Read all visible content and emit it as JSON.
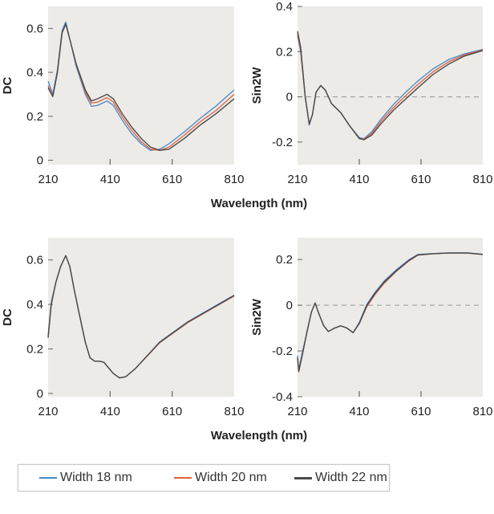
{
  "colors": {
    "plot_background": "#ecebe7",
    "width_18": "#4a86c8",
    "width_20": "#e0603a",
    "width_22": "#4a4a4a",
    "zero_line": "#a0a0a0"
  },
  "legend": [
    {
      "label": "Width 18 nm",
      "color": "#4a86c8"
    },
    {
      "label": "Width 20 nm",
      "color": "#e0603a"
    },
    {
      "label": "Width 22 nm",
      "color": "#4a4a4a"
    }
  ],
  "chart_data": [
    {
      "type": "line",
      "ylabel": "DC",
      "xlabel": "Wavelength (nm)",
      "xlim": [
        210,
        810
      ],
      "ylim": [
        -0.02,
        0.7
      ],
      "xticks": [
        210,
        410,
        610,
        810
      ],
      "yticks": [
        0,
        0.2,
        0.4,
        0.6
      ],
      "ytick_labels": [
        "0",
        "0.2",
        "0.4",
        "0.6"
      ],
      "zero_line": false,
      "x": [
        210,
        225,
        240,
        255,
        267,
        280,
        300,
        330,
        350,
        370,
        400,
        420,
        450,
        480,
        510,
        540,
        570,
        600,
        650,
        700,
        750,
        810
      ],
      "series": [
        {
          "name": "Width 18 nm",
          "values": [
            0.36,
            0.3,
            0.41,
            0.59,
            0.63,
            0.55,
            0.43,
            0.3,
            0.245,
            0.25,
            0.27,
            0.25,
            0.18,
            0.12,
            0.075,
            0.045,
            0.05,
            0.075,
            0.13,
            0.19,
            0.245,
            0.32
          ]
        },
        {
          "name": "Width 20 nm",
          "values": [
            0.34,
            0.29,
            0.4,
            0.58,
            0.62,
            0.55,
            0.44,
            0.31,
            0.26,
            0.265,
            0.285,
            0.265,
            0.195,
            0.135,
            0.085,
            0.05,
            0.045,
            0.06,
            0.115,
            0.175,
            0.225,
            0.3
          ]
        },
        {
          "name": "Width 22 nm",
          "values": [
            0.33,
            0.29,
            0.4,
            0.58,
            0.62,
            0.55,
            0.44,
            0.32,
            0.27,
            0.28,
            0.3,
            0.28,
            0.21,
            0.15,
            0.1,
            0.06,
            0.045,
            0.05,
            0.1,
            0.16,
            0.21,
            0.28
          ]
        }
      ]
    },
    {
      "type": "line",
      "ylabel": "Sin2W",
      "xlim": [
        210,
        810
      ],
      "ylim": [
        -0.3,
        0.4
      ],
      "xticks": [
        210,
        410,
        610,
        810
      ],
      "yticks": [
        -0.2,
        0,
        0.2,
        0.4
      ],
      "ytick_labels": [
        "-0.2",
        "0",
        "0.2",
        "0.4"
      ],
      "zero_line": true,
      "x": [
        210,
        220,
        235,
        248,
        258,
        270,
        285,
        300,
        320,
        350,
        380,
        410,
        425,
        450,
        480,
        520,
        560,
        600,
        650,
        700,
        750,
        810
      ],
      "series": [
        {
          "name": "Width 18 nm",
          "values": [
            0.27,
            0.2,
            0.0,
            -0.125,
            -0.08,
            0.02,
            0.05,
            0.03,
            -0.03,
            -0.07,
            -0.13,
            -0.18,
            -0.185,
            -0.155,
            -0.1,
            -0.035,
            0.02,
            0.07,
            0.125,
            0.165,
            0.19,
            0.21
          ]
        },
        {
          "name": "Width 20 nm",
          "values": [
            0.28,
            0.21,
            0.0,
            -0.12,
            -0.08,
            0.02,
            0.05,
            0.03,
            -0.03,
            -0.07,
            -0.13,
            -0.183,
            -0.188,
            -0.163,
            -0.11,
            -0.048,
            0.005,
            0.055,
            0.112,
            0.155,
            0.185,
            0.207
          ]
        },
        {
          "name": "Width 22 nm",
          "values": [
            0.29,
            0.22,
            0.0,
            -0.12,
            -0.08,
            0.02,
            0.05,
            0.03,
            -0.03,
            -0.07,
            -0.13,
            -0.185,
            -0.19,
            -0.17,
            -0.12,
            -0.06,
            -0.01,
            0.04,
            0.1,
            0.145,
            0.18,
            0.205
          ]
        }
      ]
    },
    {
      "type": "line",
      "ylabel": "DC",
      "xlabel": "Wavelength (nm)",
      "xlim": [
        210,
        810
      ],
      "ylim": [
        -0.015,
        0.7
      ],
      "xticks": [
        210,
        410,
        610,
        810
      ],
      "yticks": [
        0,
        0.2,
        0.4,
        0.6
      ],
      "ytick_labels": [
        "0",
        "0.2",
        "0.4",
        "0.6"
      ],
      "zero_line": false,
      "x": [
        210,
        220,
        235,
        250,
        267,
        280,
        295,
        310,
        330,
        345,
        360,
        375,
        390,
        405,
        420,
        440,
        460,
        490,
        530,
        570,
        610,
        660,
        710,
        760,
        810
      ],
      "series": [
        {
          "name": "Width 18 nm",
          "values": [
            0.26,
            0.41,
            0.5,
            0.57,
            0.62,
            0.57,
            0.46,
            0.36,
            0.23,
            0.16,
            0.145,
            0.145,
            0.14,
            0.115,
            0.09,
            0.07,
            0.075,
            0.11,
            0.17,
            0.232,
            0.272,
            0.322,
            0.362,
            0.402,
            0.442
          ]
        },
        {
          "name": "Width 20 nm",
          "values": [
            0.25,
            0.4,
            0.5,
            0.57,
            0.62,
            0.57,
            0.46,
            0.36,
            0.23,
            0.16,
            0.145,
            0.145,
            0.14,
            0.115,
            0.09,
            0.07,
            0.075,
            0.11,
            0.168,
            0.228,
            0.268,
            0.318,
            0.358,
            0.398,
            0.438
          ]
        },
        {
          "name": "Width 22 nm",
          "values": [
            0.25,
            0.4,
            0.5,
            0.57,
            0.62,
            0.57,
            0.46,
            0.36,
            0.23,
            0.16,
            0.145,
            0.145,
            0.14,
            0.115,
            0.09,
            0.07,
            0.075,
            0.11,
            0.17,
            0.23,
            0.27,
            0.32,
            0.36,
            0.4,
            0.44
          ]
        }
      ]
    },
    {
      "type": "line",
      "ylabel": "Sin2W",
      "xlim": [
        210,
        810
      ],
      "ylim": [
        -0.4,
        0.295
      ],
      "xticks": [
        210,
        410,
        610,
        810
      ],
      "yticks": [
        -0.4,
        -0.2,
        0,
        0.2
      ],
      "ytick_labels": [
        "-0.4",
        "-0.2",
        "0",
        "0.2"
      ],
      "zero_line": true,
      "x": [
        210,
        214,
        225,
        240,
        255,
        267,
        280,
        295,
        310,
        330,
        350,
        370,
        390,
        410,
        435,
        460,
        490,
        530,
        570,
        600,
        650,
        700,
        760,
        810
      ],
      "series": [
        {
          "name": "Width 18 nm",
          "values": [
            -0.22,
            -0.28,
            -0.21,
            -0.12,
            -0.03,
            0.01,
            -0.04,
            -0.09,
            -0.115,
            -0.1,
            -0.09,
            -0.1,
            -0.12,
            -0.075,
            0.005,
            0.055,
            0.105,
            0.155,
            0.198,
            0.222,
            0.226,
            0.229,
            0.229,
            0.223
          ]
        },
        {
          "name": "Width 20 nm",
          "values": [
            -0.23,
            -0.29,
            -0.22,
            -0.12,
            -0.03,
            0.01,
            -0.04,
            -0.09,
            -0.115,
            -0.1,
            -0.09,
            -0.1,
            -0.12,
            -0.08,
            -0.005,
            0.045,
            0.095,
            0.148,
            0.193,
            0.219,
            0.225,
            0.228,
            0.228,
            0.222
          ]
        },
        {
          "name": "Width 22 nm",
          "values": [
            -0.23,
            -0.29,
            -0.22,
            -0.12,
            -0.03,
            0.01,
            -0.04,
            -0.09,
            -0.115,
            -0.1,
            -0.09,
            -0.1,
            -0.12,
            -0.08,
            0.0,
            0.05,
            0.1,
            0.15,
            0.195,
            0.22,
            0.225,
            0.228,
            0.228,
            0.222
          ]
        }
      ]
    }
  ]
}
